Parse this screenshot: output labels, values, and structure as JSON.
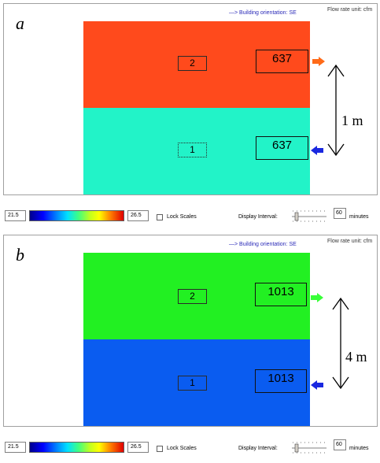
{
  "colors": {
    "panel_a_top": "#ff4a1c",
    "panel_a_bottom": "#22f3c8",
    "panel_b_top": "#22f022",
    "panel_b_bottom": "#0a5cf0",
    "outflow_arrow_a": "#ff6a18",
    "inflow_arrow": "#1a28e0",
    "outflow_arrow_b": "#38ff38"
  },
  "panels": [
    {
      "letter": "a",
      "orientation": "—> Building orientation: SE",
      "flow_unit": "Flow rate unit: cfm",
      "zones": {
        "upper": {
          "label": "2",
          "flow": "637",
          "flow_arrow_icon": "arrow-right-icon"
        },
        "lower": {
          "label": "1",
          "flow": "637",
          "flow_arrow_icon": "arrow-left-icon"
        }
      },
      "height_annotation": "1 m",
      "scale": {
        "min": "21.5",
        "max": "26.5",
        "lock_label": "Lock Scales",
        "lock_checked": false
      },
      "display_interval": {
        "label": "Display Interval:",
        "value": "60",
        "unit": "minutes"
      }
    },
    {
      "letter": "b",
      "orientation": "—> Building orientation: SE",
      "flow_unit": "Flow rate unit: cfm",
      "zones": {
        "upper": {
          "label": "2",
          "flow": "1013",
          "flow_arrow_icon": "arrow-right-icon"
        },
        "lower": {
          "label": "1",
          "flow": "1013",
          "flow_arrow_icon": "arrow-left-icon"
        }
      },
      "height_annotation": "4 m",
      "scale": {
        "min": "21.5",
        "max": "26.5",
        "lock_label": "Lock Scales",
        "lock_checked": false
      },
      "display_interval": {
        "label": "Display Interval:",
        "value": "60",
        "unit": "minutes"
      }
    }
  ]
}
